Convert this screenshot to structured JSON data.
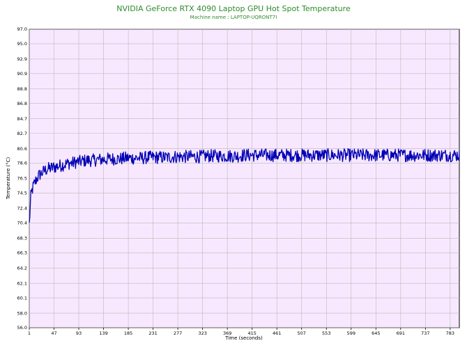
{
  "chart_data": {
    "type": "line",
    "title": "NVIDIA GeForce RTX 4090 Laptop GPU Hot Spot Temperature",
    "subtitle": "Machine name : LAPTOP-UQRONT7I",
    "xlabel": "Time (seconds)",
    "ylabel": "Temperature (°C)",
    "xlim": [
      1,
      800
    ],
    "ylim": [
      56.0,
      97.0
    ],
    "x_ticks": [
      "1",
      "47",
      "93",
      "139",
      "185",
      "231",
      "277",
      "323",
      "369",
      "415",
      "461",
      "507",
      "553",
      "599",
      "645",
      "691",
      "737",
      "783"
    ],
    "y_ticks": [
      "97.0",
      "95.0",
      "92.9",
      "90.9",
      "88.8",
      "86.8",
      "84.7",
      "82.7",
      "80.6",
      "78.6",
      "76.5",
      "74.5",
      "72.4",
      "70.4",
      "68.3",
      "66.3",
      "64.2",
      "62.1",
      "60.1",
      "58.0",
      "56.0"
    ],
    "grid": true,
    "plot_background": "#f8e8ff",
    "grid_color": "#b8b8b8",
    "line_color": "#0000b4",
    "title_color": "#2e8b2e",
    "series": [
      {
        "x": [
          1,
          2,
          3,
          4,
          6,
          8,
          10,
          13,
          16,
          20,
          25,
          30,
          35,
          40,
          45,
          50,
          55,
          60,
          65,
          70,
          75,
          80,
          85,
          90,
          95,
          100,
          110,
          120,
          130,
          140,
          150,
          160,
          170,
          180,
          190,
          200,
          210,
          220,
          230,
          240,
          250,
          260,
          270,
          280,
          290,
          300,
          310,
          320,
          330,
          340,
          350,
          360,
          370,
          380,
          390,
          400,
          410,
          420,
          430,
          440,
          450,
          460,
          470,
          480,
          490,
          500,
          510,
          520,
          530,
          540,
          550,
          560,
          570,
          580,
          590,
          600,
          610,
          620,
          630,
          640,
          650,
          660,
          670,
          680,
          690,
          700,
          710,
          720,
          730,
          740,
          750,
          760,
          770,
          780,
          790,
          800
        ],
        "values": [
          70.4,
          71.2,
          73.0,
          74.0,
          74.8,
          75.3,
          75.7,
          76.2,
          76.6,
          77.0,
          77.3,
          77.6,
          77.8,
          77.9,
          78.0,
          78.1,
          78.2,
          78.3,
          78.4,
          78.5,
          78.6,
          78.6,
          78.7,
          78.8,
          78.8,
          78.9,
          79.0,
          79.0,
          79.1,
          79.1,
          79.2,
          79.2,
          79.2,
          79.3,
          79.3,
          79.3,
          79.3,
          79.4,
          79.4,
          79.4,
          79.4,
          79.4,
          79.5,
          79.5,
          79.5,
          79.5,
          79.5,
          79.5,
          79.6,
          79.6,
          79.6,
          79.6,
          79.6,
          79.6,
          79.6,
          79.7,
          79.7,
          79.7,
          79.7,
          79.7,
          79.7,
          79.7,
          79.7,
          79.7,
          79.7,
          79.7,
          79.7,
          79.7,
          79.7,
          79.7,
          79.7,
          79.7,
          79.7,
          79.7,
          79.7,
          79.7,
          79.7,
          79.7,
          79.7,
          79.7,
          79.7,
          79.7,
          79.7,
          79.7,
          79.7,
          79.7,
          79.7,
          79.7,
          79.7,
          79.7,
          79.7,
          79.7,
          79.7,
          79.7,
          79.7,
          79.7
        ],
        "noise_amplitude": 0.9
      }
    ]
  }
}
